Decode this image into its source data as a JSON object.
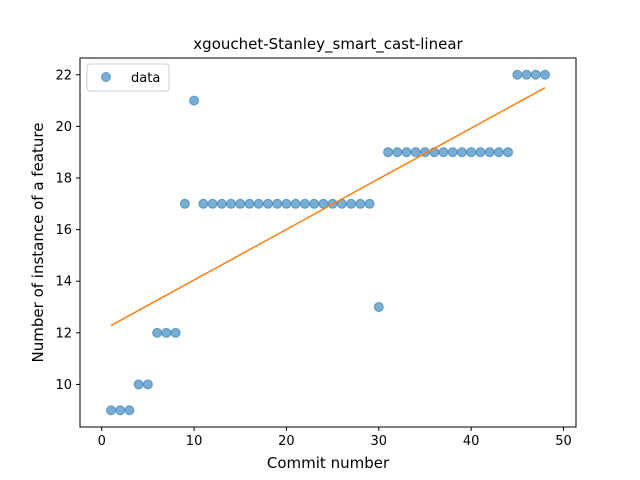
{
  "chart_data": {
    "type": "scatter",
    "title": "xgouchet-Stanley_smart_cast-linear",
    "xlabel": "Commit number",
    "ylabel": "Number of instance of a feature",
    "xlim": [
      -2.35,
      51.35
    ],
    "ylim": [
      8.35,
      22.65
    ],
    "xticks": [
      0,
      10,
      20,
      30,
      40,
      50
    ],
    "yticks": [
      10,
      12,
      14,
      16,
      18,
      20,
      22
    ],
    "legend_position": "upper-left",
    "grid": false,
    "series": [
      {
        "name": "data",
        "kind": "scatter",
        "color": "#1f77b4",
        "x": [
          1,
          2,
          3,
          4,
          5,
          6,
          7,
          8,
          9,
          10,
          11,
          12,
          13,
          14,
          15,
          16,
          17,
          18,
          19,
          20,
          21,
          22,
          23,
          24,
          25,
          26,
          27,
          28,
          29,
          30,
          31,
          32,
          33,
          34,
          35,
          36,
          37,
          38,
          39,
          40,
          41,
          42,
          43,
          44,
          45,
          46,
          47,
          48
        ],
        "y": [
          9,
          9,
          9,
          10,
          10,
          12,
          12,
          12,
          17,
          21,
          17,
          17,
          17,
          17,
          17,
          17,
          17,
          17,
          17,
          17,
          17,
          17,
          17,
          17,
          17,
          17,
          17,
          17,
          17,
          13,
          19,
          19,
          19,
          19,
          19,
          19,
          19,
          19,
          19,
          19,
          19,
          19,
          19,
          19,
          22,
          22,
          22,
          22
        ]
      },
      {
        "kind": "line",
        "color": "#ff7f0e",
        "x": [
          1,
          48
        ],
        "y": [
          12.28,
          21.5
        ]
      }
    ]
  }
}
